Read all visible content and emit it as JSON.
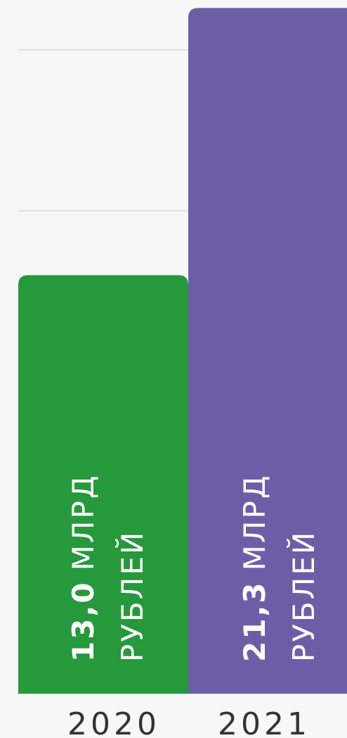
{
  "chart_data": {
    "type": "bar",
    "categories": [
      "2020",
      "2021"
    ],
    "values": [
      13.0,
      21.3
    ],
    "value_labels": [
      "13,0",
      "21,3"
    ],
    "unit_lines": [
      "МЛРД",
      "РУБЛЕЙ"
    ],
    "colors": [
      "#25993b",
      "#6c5ea6"
    ],
    "ylim": [
      0,
      21.55
    ],
    "yticks": [
      0,
      5,
      10,
      15,
      20
    ],
    "grid": true
  }
}
